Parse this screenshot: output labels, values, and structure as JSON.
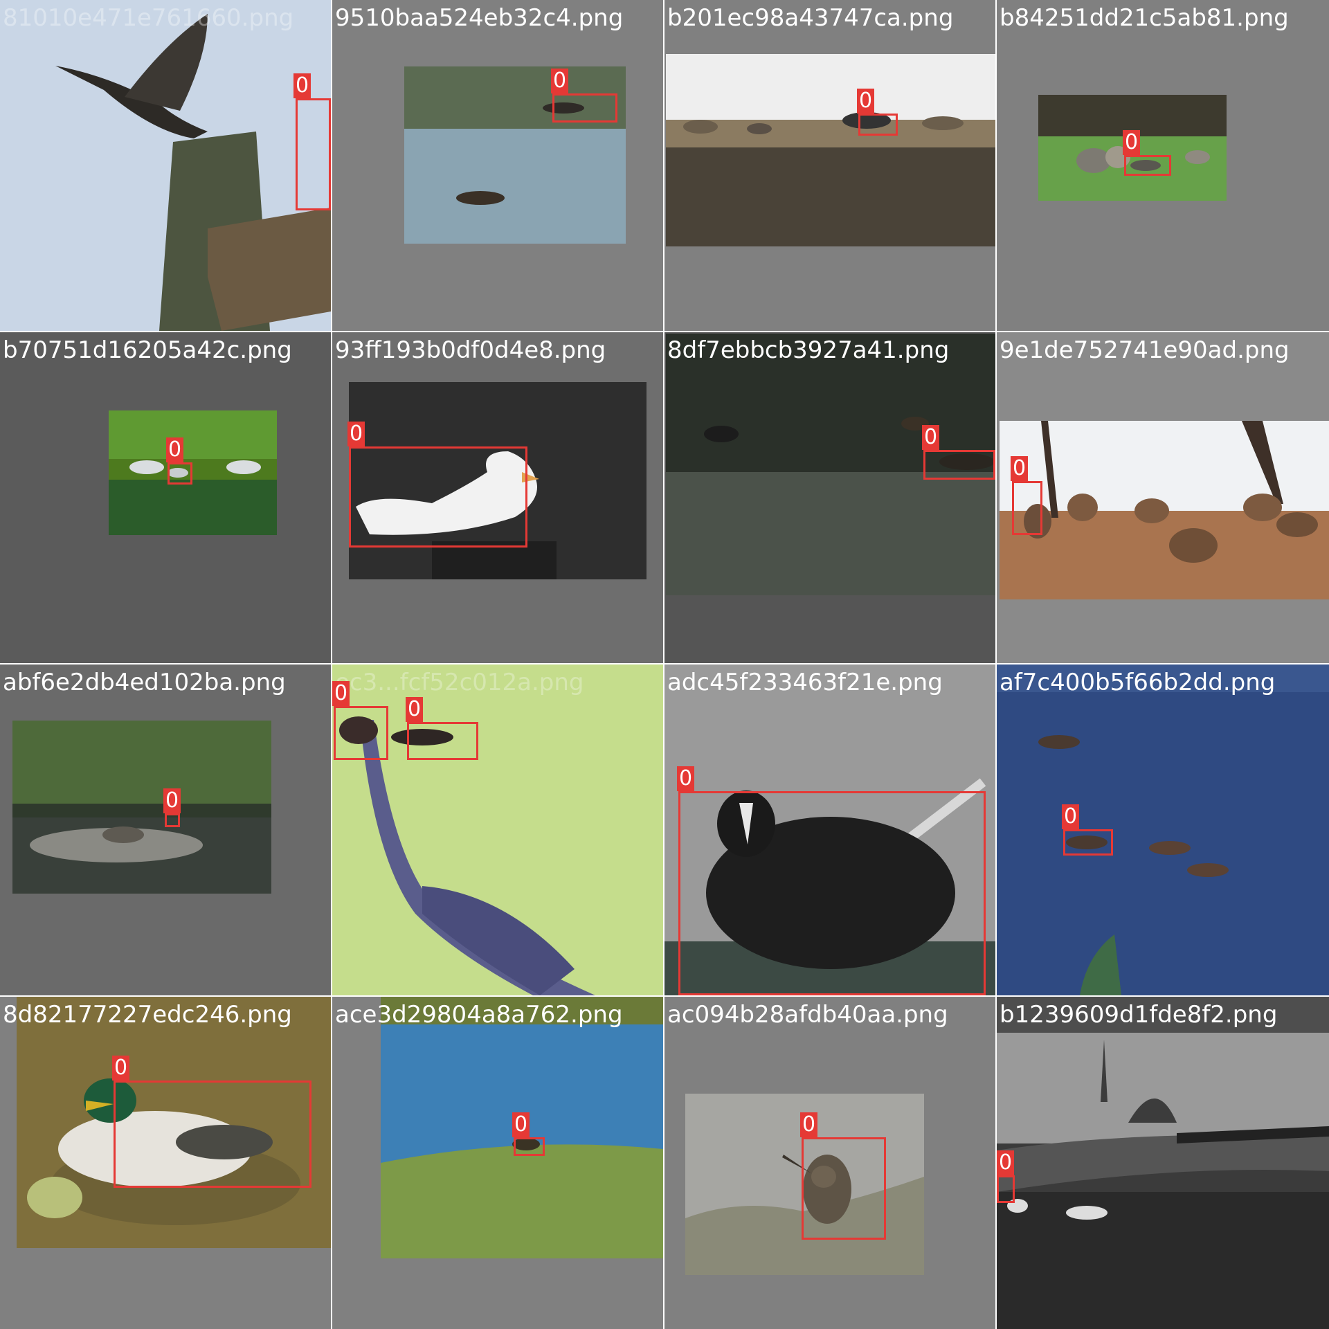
{
  "mosaic": {
    "tiles": [
      {
        "filename": "81010e471e761660.png",
        "box_labels": [
          "0"
        ]
      },
      {
        "filename": "9510baa524eb32c4.png",
        "box_labels": [
          "0"
        ]
      },
      {
        "filename": "b201ec98a43747ca.png",
        "box_labels": [
          "0"
        ]
      },
      {
        "filename": "b84251dd21c5ab81.png",
        "box_labels": [
          "0"
        ]
      },
      {
        "filename": "b70751d16205a42c.png",
        "box_labels": [
          "0"
        ]
      },
      {
        "filename": "93ff193b0df0d4e8.png",
        "box_labels": [
          "0"
        ]
      },
      {
        "filename": "8df7ebbcb3927a41.png",
        "box_labels": [
          "0"
        ]
      },
      {
        "filename": "9e1de752741e90ad.png",
        "box_labels": [
          "0"
        ]
      },
      {
        "filename": "abf6e2db4ed102ba.png",
        "box_labels": [
          "0"
        ]
      },
      {
        "filename": "ec3...fcf52c012a.png",
        "box_labels": [
          "0",
          "0"
        ]
      },
      {
        "filename": "adc45f233463f21e.png",
        "box_labels": [
          "0"
        ]
      },
      {
        "filename": "af7c400b5f66b2dd.png",
        "box_labels": [
          "0"
        ]
      },
      {
        "filename": "8d82177227edc246.png",
        "box_labels": [
          "0"
        ]
      },
      {
        "filename": "ace3d29804a8a762.png",
        "box_labels": [
          "0"
        ]
      },
      {
        "filename": "ac094b28afdb40aa.png",
        "box_labels": [
          "0"
        ]
      },
      {
        "filename": "b1239609d1fde8f2.png",
        "box_labels": [
          "0"
        ]
      }
    ],
    "colors": {
      "box": "#e53935",
      "label_text": "#ffffff",
      "padding": "#808080"
    }
  }
}
